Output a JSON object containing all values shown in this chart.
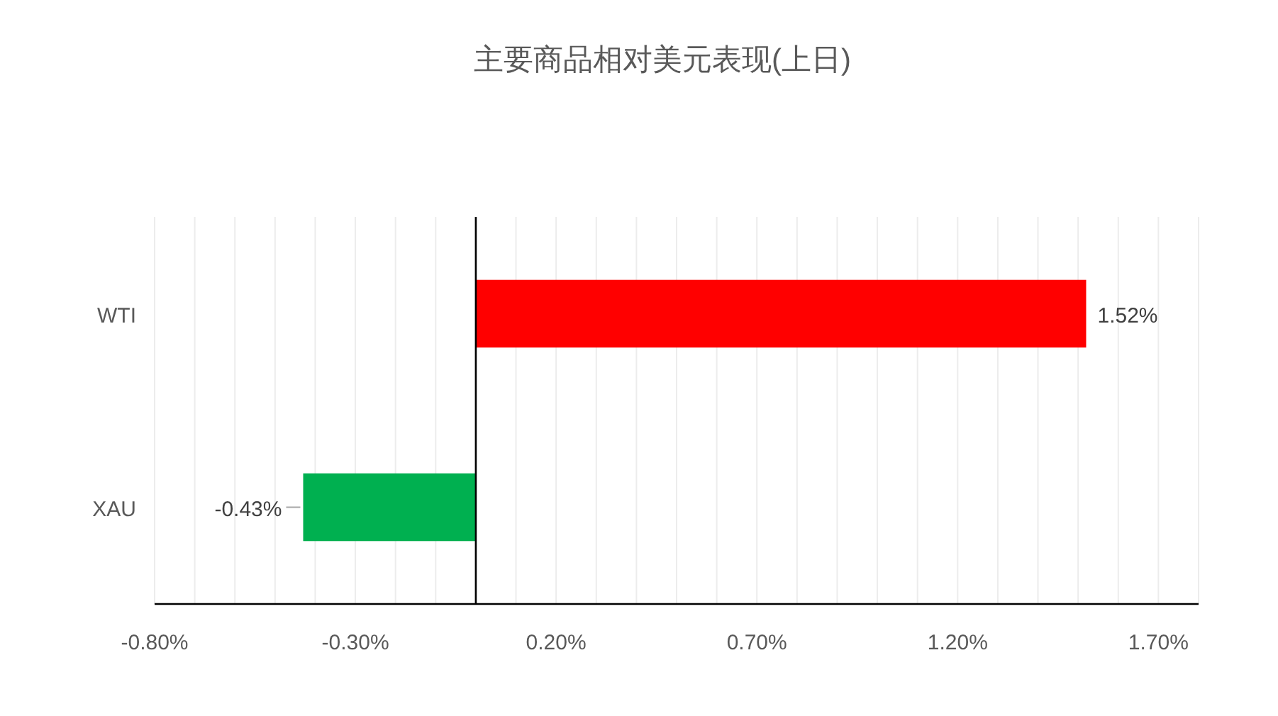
{
  "chart_data": {
    "type": "bar",
    "orientation": "horizontal",
    "title": "主要商品相对美元表现(上日)",
    "categories": [
      "WTI",
      "XAU"
    ],
    "values": [
      1.52,
      -0.43
    ],
    "colors": [
      "#ff0000",
      "#00b050"
    ],
    "value_labels": [
      "1.52%",
      "-0.43%"
    ],
    "xlim": [
      -0.8,
      1.8
    ],
    "xticks": [
      {
        "value": -0.8,
        "label": "-0.80%"
      },
      {
        "value": -0.7,
        "label": null
      },
      {
        "value": -0.6,
        "label": null
      },
      {
        "value": -0.5,
        "label": null
      },
      {
        "value": -0.4,
        "label": null
      },
      {
        "value": -0.3,
        "label": "-0.30%"
      },
      {
        "value": -0.2,
        "label": null
      },
      {
        "value": -0.1,
        "label": null
      },
      {
        "value": 0,
        "label": null
      },
      {
        "value": 0.1,
        "label": null
      },
      {
        "value": 0.2,
        "label": "0.20%"
      },
      {
        "value": 0.3,
        "label": null
      },
      {
        "value": 0.4,
        "label": null
      },
      {
        "value": 0.5,
        "label": null
      },
      {
        "value": 0.6,
        "label": null
      },
      {
        "value": 0.7,
        "label": "0.70%"
      },
      {
        "value": 0.8,
        "label": null
      },
      {
        "value": 0.9,
        "label": null
      },
      {
        "value": 1.0,
        "label": null
      },
      {
        "value": 1.1,
        "label": null
      },
      {
        "value": 1.2,
        "label": "1.20%"
      },
      {
        "value": 1.3,
        "label": null
      },
      {
        "value": 1.4,
        "label": null
      },
      {
        "value": 1.5,
        "label": null
      },
      {
        "value": 1.6,
        "label": null
      },
      {
        "value": 1.7,
        "label": "1.70%"
      },
      {
        "value": 1.8,
        "label": null
      }
    ],
    "grid": "x"
  }
}
